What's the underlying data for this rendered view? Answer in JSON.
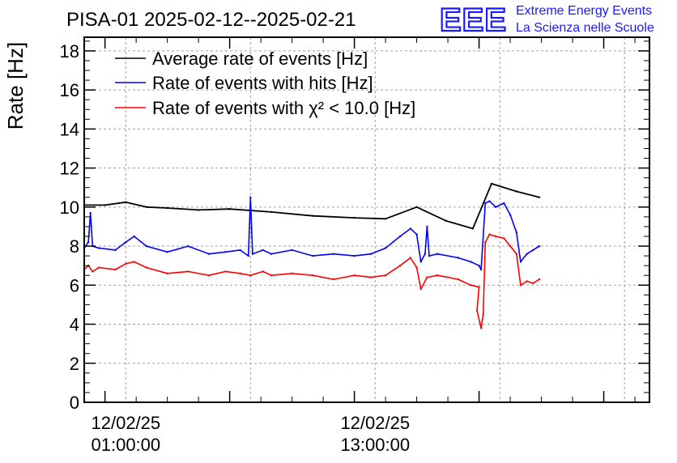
{
  "header": {
    "title": "PISA-01 2025-02-12--2025-02-21",
    "logo_text": "EEE",
    "logo_line1": "Extreme Energy Events",
    "logo_line2": "La Scienza nelle Scuole"
  },
  "colors": {
    "average": "#000000",
    "hits": "#0000ff",
    "chi2": "#ff0000",
    "logo": "#1a1aff",
    "grid": "#a0a0a0"
  },
  "chart_data": {
    "type": "line",
    "title": "PISA-01 2025-02-12--2025-02-21",
    "xlabel": "",
    "ylabel": "Rate [Hz]",
    "ylim": [
      0,
      18.7
    ],
    "xlim_hours": [
      -1.0,
      26.2
    ],
    "yticks": [
      0,
      2,
      4,
      6,
      8,
      10,
      12,
      14,
      16,
      18
    ],
    "xticks": [
      {
        "hour": 1,
        "date": "12/02/25",
        "time": "01:00:00"
      },
      {
        "hour": 13,
        "date": "12/02/25",
        "time": "13:00:00"
      }
    ],
    "grid": true,
    "legend_position": "top-left",
    "series": [
      {
        "name": "Average rate of events [Hz]",
        "color": "#000000",
        "x": [
          -1.0,
          0.0,
          1.0,
          2.0,
          3.0,
          4.5,
          6.0,
          8.0,
          10.0,
          12.0,
          13.5,
          15.0,
          16.4,
          17.7,
          18.6,
          19.8,
          20.9
        ],
        "y": [
          10.1,
          10.1,
          10.25,
          10.0,
          9.95,
          9.85,
          9.9,
          9.75,
          9.55,
          9.45,
          9.4,
          10.0,
          9.3,
          8.9,
          11.2,
          10.8,
          10.5
        ]
      },
      {
        "name": "Rate of events with hits [Hz]",
        "color": "#0000ff",
        "x": [
          -1.0,
          -0.8,
          -0.7,
          -0.6,
          -0.3,
          0.5,
          1.0,
          1.4,
          2.0,
          3.0,
          4.0,
          5.0,
          5.8,
          6.5,
          6.9,
          7.0,
          7.1,
          7.6,
          8.0,
          9.0,
          10.0,
          11.0,
          12.0,
          12.8,
          13.5,
          14.2,
          14.7,
          15.0,
          15.2,
          15.4,
          15.5,
          15.6,
          16.0,
          17.0,
          17.6,
          18.0,
          18.1,
          18.3,
          18.5,
          18.8,
          19.2,
          19.5,
          19.8,
          20.0,
          20.3,
          20.6,
          20.9
        ],
        "y": [
          7.9,
          8.2,
          9.7,
          8.0,
          7.9,
          7.8,
          8.2,
          8.5,
          8.0,
          7.7,
          8.0,
          7.6,
          7.7,
          7.8,
          7.5,
          10.5,
          7.6,
          7.8,
          7.6,
          7.8,
          7.5,
          7.6,
          7.5,
          7.6,
          7.9,
          8.5,
          8.9,
          8.6,
          7.2,
          7.6,
          9.0,
          7.5,
          7.6,
          7.4,
          7.2,
          7.0,
          6.8,
          10.2,
          10.3,
          10.0,
          10.2,
          9.6,
          8.7,
          7.2,
          7.6,
          7.8,
          8.0
        ]
      },
      {
        "name": "Rate of events with χ² < 10.0 [Hz]",
        "color": "#ff0000",
        "x": [
          -1.0,
          -0.8,
          -0.6,
          -0.3,
          0.5,
          1.0,
          1.4,
          2.0,
          3.0,
          4.0,
          5.0,
          5.8,
          6.5,
          7.0,
          7.6,
          8.0,
          9.0,
          10.0,
          11.0,
          12.0,
          12.8,
          13.5,
          14.2,
          14.7,
          15.0,
          15.2,
          15.5,
          16.0,
          17.0,
          17.6,
          18.0,
          17.9,
          18.1,
          18.2,
          18.3,
          18.5,
          18.8,
          19.2,
          19.5,
          19.8,
          20.0,
          20.3,
          20.6,
          20.9
        ],
        "y": [
          6.8,
          7.0,
          6.7,
          6.9,
          6.8,
          7.1,
          7.2,
          6.9,
          6.6,
          6.7,
          6.5,
          6.7,
          6.6,
          6.5,
          6.7,
          6.5,
          6.6,
          6.5,
          6.3,
          6.5,
          6.4,
          6.5,
          7.0,
          7.4,
          6.9,
          5.8,
          6.4,
          6.5,
          6.3,
          6.0,
          5.9,
          4.7,
          3.8,
          4.5,
          8.2,
          8.6,
          8.5,
          8.4,
          8.0,
          7.6,
          6.0,
          6.2,
          6.1,
          6.3
        ]
      }
    ]
  }
}
